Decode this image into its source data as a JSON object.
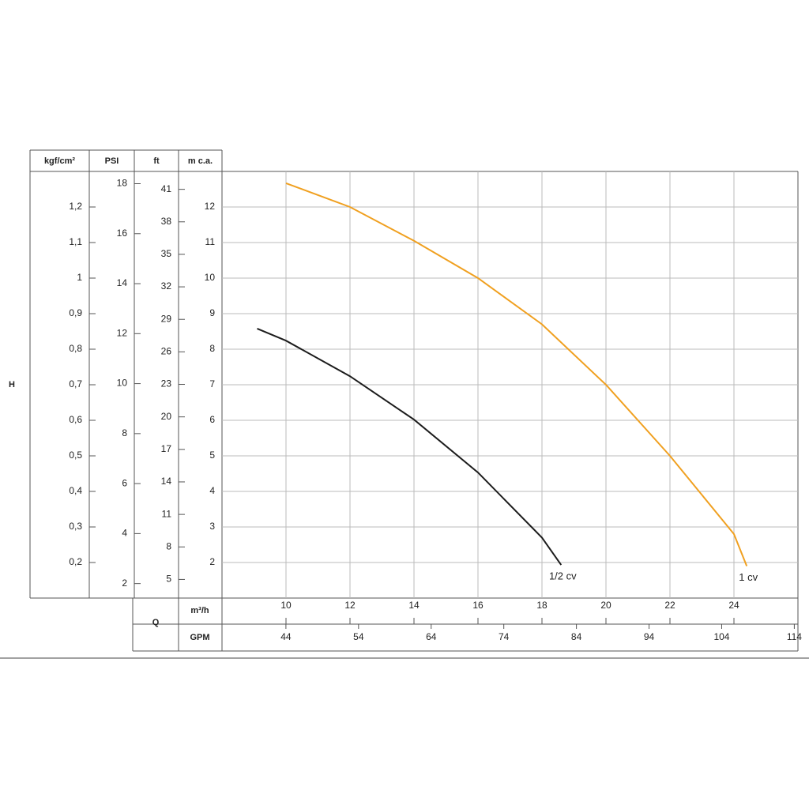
{
  "chart_data": {
    "type": "line",
    "y_label": "H",
    "x_label": "Q",
    "x_unit": "m³/h",
    "xlim": [
      8,
      26
    ],
    "xticks": [
      10,
      12,
      14,
      16,
      18,
      20,
      22,
      24
    ],
    "x2_unit": "GPM",
    "x2lim": [
      35.2,
      114.5
    ],
    "x2ticks": [
      44,
      54,
      64,
      74,
      84,
      94,
      104,
      114
    ],
    "y_axes": [
      {
        "label": "kgf/cm²",
        "lim": [
          0.1,
          1.3
        ],
        "ticks": [
          {
            "value": 0.2,
            "label": "0,2"
          },
          {
            "value": 0.3,
            "label": "0,3"
          },
          {
            "value": 0.4,
            "label": "0,4"
          },
          {
            "value": 0.5,
            "label": "0,5"
          },
          {
            "value": 0.6,
            "label": "0,6"
          },
          {
            "value": 0.7,
            "label": "0,7"
          },
          {
            "value": 0.8,
            "label": "0,8"
          },
          {
            "value": 0.9,
            "label": "0,9"
          },
          1,
          {
            "value": 1.1,
            "label": "1,1"
          },
          {
            "value": 1.2,
            "label": "1,2"
          }
        ]
      },
      {
        "label": "PSI",
        "lim": [
          1.42,
          18.49
        ],
        "ticks": [
          2,
          4,
          6,
          8,
          10,
          12,
          14,
          16,
          18
        ]
      },
      {
        "label": "ft",
        "lim": [
          3.28,
          42.65
        ],
        "ticks": [
          5,
          8,
          11,
          14,
          17,
          20,
          23,
          26,
          29,
          32,
          35,
          38,
          41
        ]
      },
      {
        "label": "m c.a.",
        "lim": [
          1,
          13
        ],
        "ticks": [
          2,
          3,
          4,
          5,
          6,
          7,
          8,
          9,
          10,
          11,
          12
        ]
      }
    ],
    "grid": true,
    "series": [
      {
        "name": "1/2 cv",
        "color": "#1c1c1c",
        "x": [
          9.1,
          10,
          12,
          14,
          16,
          18,
          18.6
        ],
        "values": [
          8.58,
          8.24,
          7.24,
          6.02,
          4.53,
          2.7,
          1.93
        ]
      },
      {
        "name": "1 cv",
        "color": "#f0a020",
        "x": [
          10,
          12,
          14,
          16,
          18,
          20,
          22,
          24,
          24.4
        ],
        "values": [
          12.67,
          12,
          11.05,
          10,
          8.7,
          7,
          5,
          2.8,
          1.9
        ]
      }
    ]
  }
}
